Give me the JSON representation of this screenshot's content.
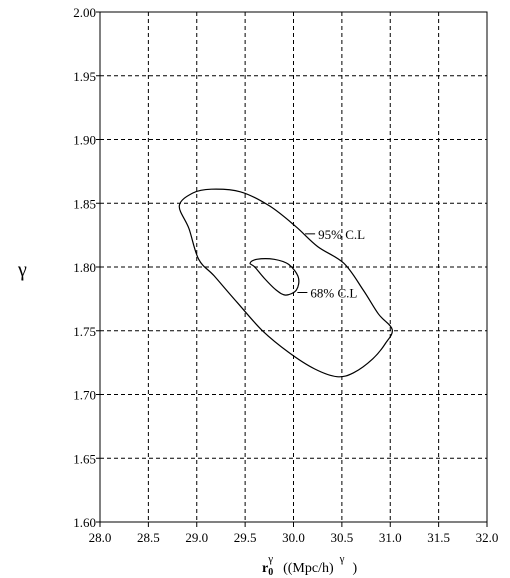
{
  "chart_data": {
    "type": "contour",
    "xlim": [
      28.0,
      32.0
    ],
    "ylim": [
      1.6,
      2.0
    ],
    "x_ticks": [
      "28.0",
      "28.5",
      "29.0",
      "29.5",
      "30.0",
      "30.5",
      "31.0",
      "31.5",
      "32.0"
    ],
    "y_ticks": [
      "1.60",
      "1.65",
      "1.70",
      "1.75",
      "1.80",
      "1.85",
      "1.90",
      "1.95",
      "2.00"
    ],
    "grid": true,
    "ylabel": "γ",
    "xlabel": {
      "base": "r",
      "subscript": "0",
      "superscript": "γ",
      "units_open": "((Mpc/h)",
      "units_sup": "γ",
      "units_close": ")"
    },
    "series": [
      {
        "name": "95% C.L",
        "closed": true,
        "points": [
          [
            28.82,
            1.848
          ],
          [
            28.96,
            1.858
          ],
          [
            29.15,
            1.861
          ],
          [
            29.45,
            1.859
          ],
          [
            29.75,
            1.848
          ],
          [
            30.02,
            1.832
          ],
          [
            30.25,
            1.816
          ],
          [
            30.52,
            1.803
          ],
          [
            30.72,
            1.782
          ],
          [
            30.88,
            1.763
          ],
          [
            31.02,
            1.751
          ],
          [
            30.95,
            1.74
          ],
          [
            30.82,
            1.728
          ],
          [
            30.62,
            1.717
          ],
          [
            30.45,
            1.714
          ],
          [
            30.22,
            1.72
          ],
          [
            29.95,
            1.733
          ],
          [
            29.68,
            1.75
          ],
          [
            29.42,
            1.772
          ],
          [
            29.18,
            1.793
          ],
          [
            29.02,
            1.806
          ],
          [
            28.92,
            1.83
          ]
        ],
        "label_at": [
          30.12,
          1.826
        ]
      },
      {
        "name": "68% C.L",
        "closed": true,
        "points": [
          [
            29.55,
            1.803
          ],
          [
            29.62,
            1.806
          ],
          [
            29.8,
            1.806
          ],
          [
            29.95,
            1.802
          ],
          [
            30.05,
            1.792
          ],
          [
            30.03,
            1.782
          ],
          [
            29.92,
            1.778
          ],
          [
            29.82,
            1.782
          ],
          [
            29.7,
            1.791
          ],
          [
            29.6,
            1.8
          ]
        ],
        "label_at": [
          30.04,
          1.78
        ]
      }
    ]
  }
}
